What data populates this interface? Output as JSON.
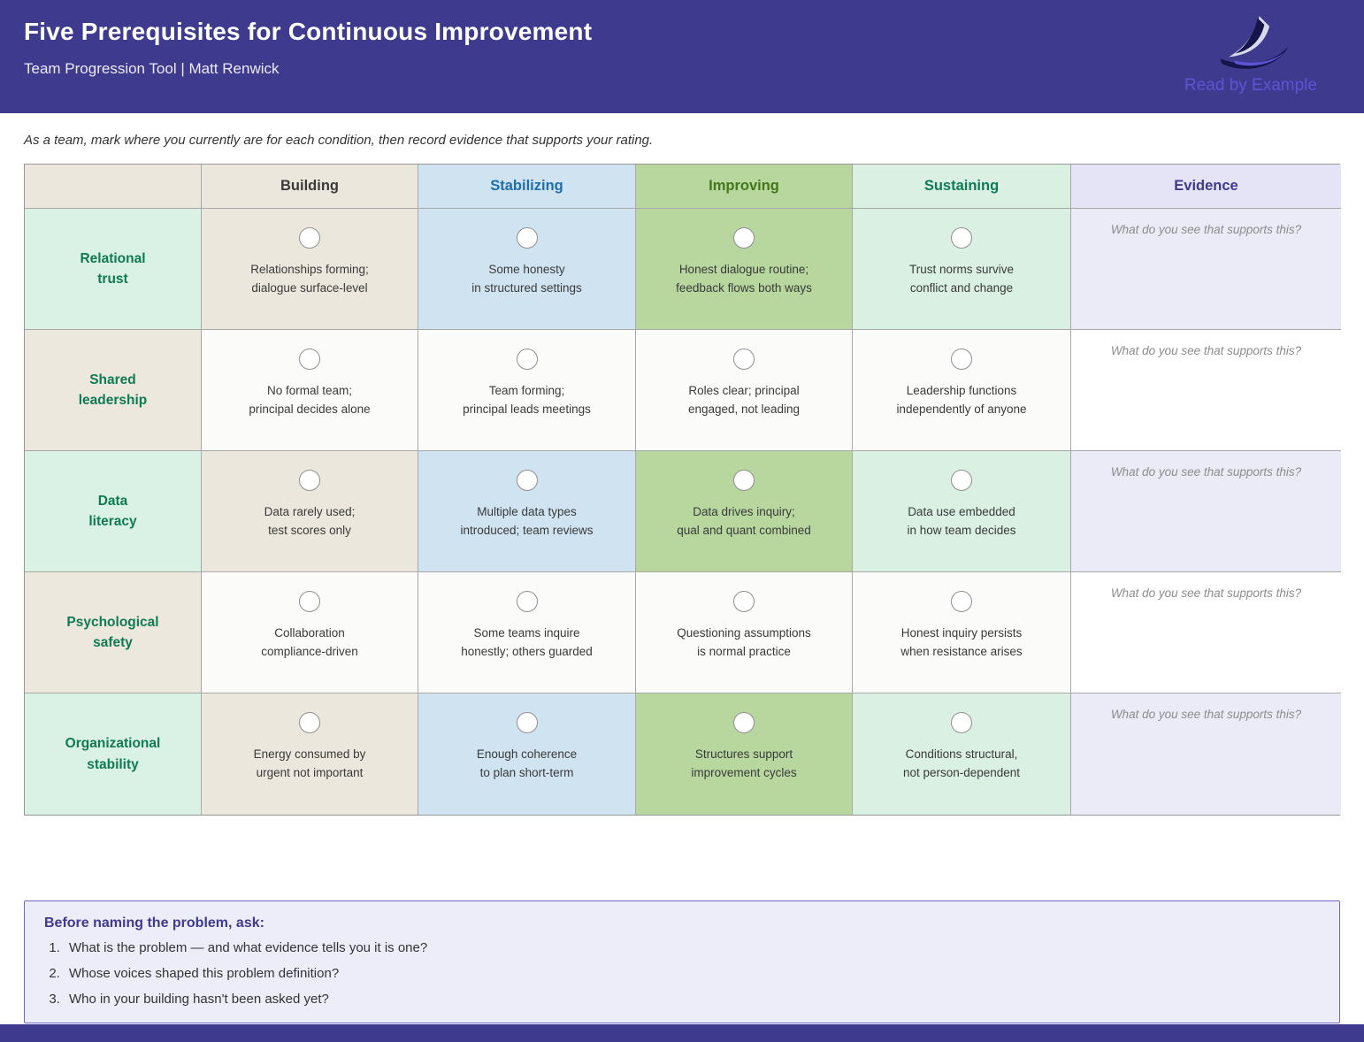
{
  "header": {
    "title": "Five Prerequisites for Continuous Improvement",
    "subtitle": "Team Progression Tool  |  Matt Renwick",
    "logo_text": "Read by Example"
  },
  "instruction": "As a team, mark where you currently are for each condition, then record evidence that supports your rating.",
  "colors": {
    "banner": "#3e3a8e",
    "corner_bg": "#ebe7dc",
    "colored_cell_bgs": [
      "#ebe7dc",
      "#cfe3f1",
      "#b7d79f",
      "#d9f0e3",
      "#ebebf8"
    ],
    "plain_cell_bg": "#fbfbfa",
    "plain_evidence_bg": "#ffffff",
    "label_bg_colored": "#daf1e5",
    "label_bg_plain": "#ece8dd",
    "row_label_color": "#107a54"
  },
  "table": {
    "stage_headers": [
      {
        "label": "Building",
        "text_color": "#3a3a3a",
        "bg": "#ebe7dc"
      },
      {
        "label": "Stabilizing",
        "text_color": "#1f6eae",
        "bg": "#cfe3f1"
      },
      {
        "label": "Improving",
        "text_color": "#44761c",
        "bg": "#b7d79f"
      },
      {
        "label": "Sustaining",
        "text_color": "#12795b",
        "bg": "#d9f0e3"
      },
      {
        "label": "Evidence",
        "text_color": "#3e3a8e",
        "bg": "#e4e4f6"
      }
    ],
    "evidence_placeholder": "What do you see that supports this?",
    "rows": [
      {
        "label": "Relational\ntrust",
        "colored": true,
        "cells": [
          "Relationships forming;\ndialogue surface-level",
          "Some honesty\nin structured settings",
          "Honest dialogue routine;\nfeedback flows both ways",
          "Trust norms survive\nconflict and change"
        ]
      },
      {
        "label": "Shared\nleadership",
        "colored": false,
        "cells": [
          "No formal team;\nprincipal decides alone",
          "Team forming;\nprincipal leads meetings",
          "Roles clear; principal\nengaged, not leading",
          "Leadership functions\nindependently of anyone"
        ]
      },
      {
        "label": "Data\nliteracy",
        "colored": true,
        "cells": [
          "Data rarely used;\ntest scores only",
          "Multiple data types\nintroduced; team reviews",
          "Data drives inquiry;\nqual and quant combined",
          "Data use embedded\nin how team decides"
        ]
      },
      {
        "label": "Psychological\nsafety",
        "colored": false,
        "cells": [
          "Collaboration\ncompliance-driven",
          "Some teams inquire\nhonestly; others guarded",
          "Questioning assumptions\nis normal practice",
          "Honest inquiry persists\nwhen resistance arises"
        ]
      },
      {
        "label": "Organizational\nstability",
        "colored": true,
        "cells": [
          "Energy consumed by\nurgent not important",
          "Enough coherence\nto plan short-term",
          "Structures support\nimprovement cycles",
          "Conditions structural,\nnot person-dependent"
        ]
      }
    ]
  },
  "panel": {
    "title": "Before naming the problem, ask:",
    "questions": [
      "What is the problem — and what evidence tells you it is one?",
      "Whose voices shaped this problem definition?",
      "Who in your building hasn't been asked yet?"
    ]
  }
}
